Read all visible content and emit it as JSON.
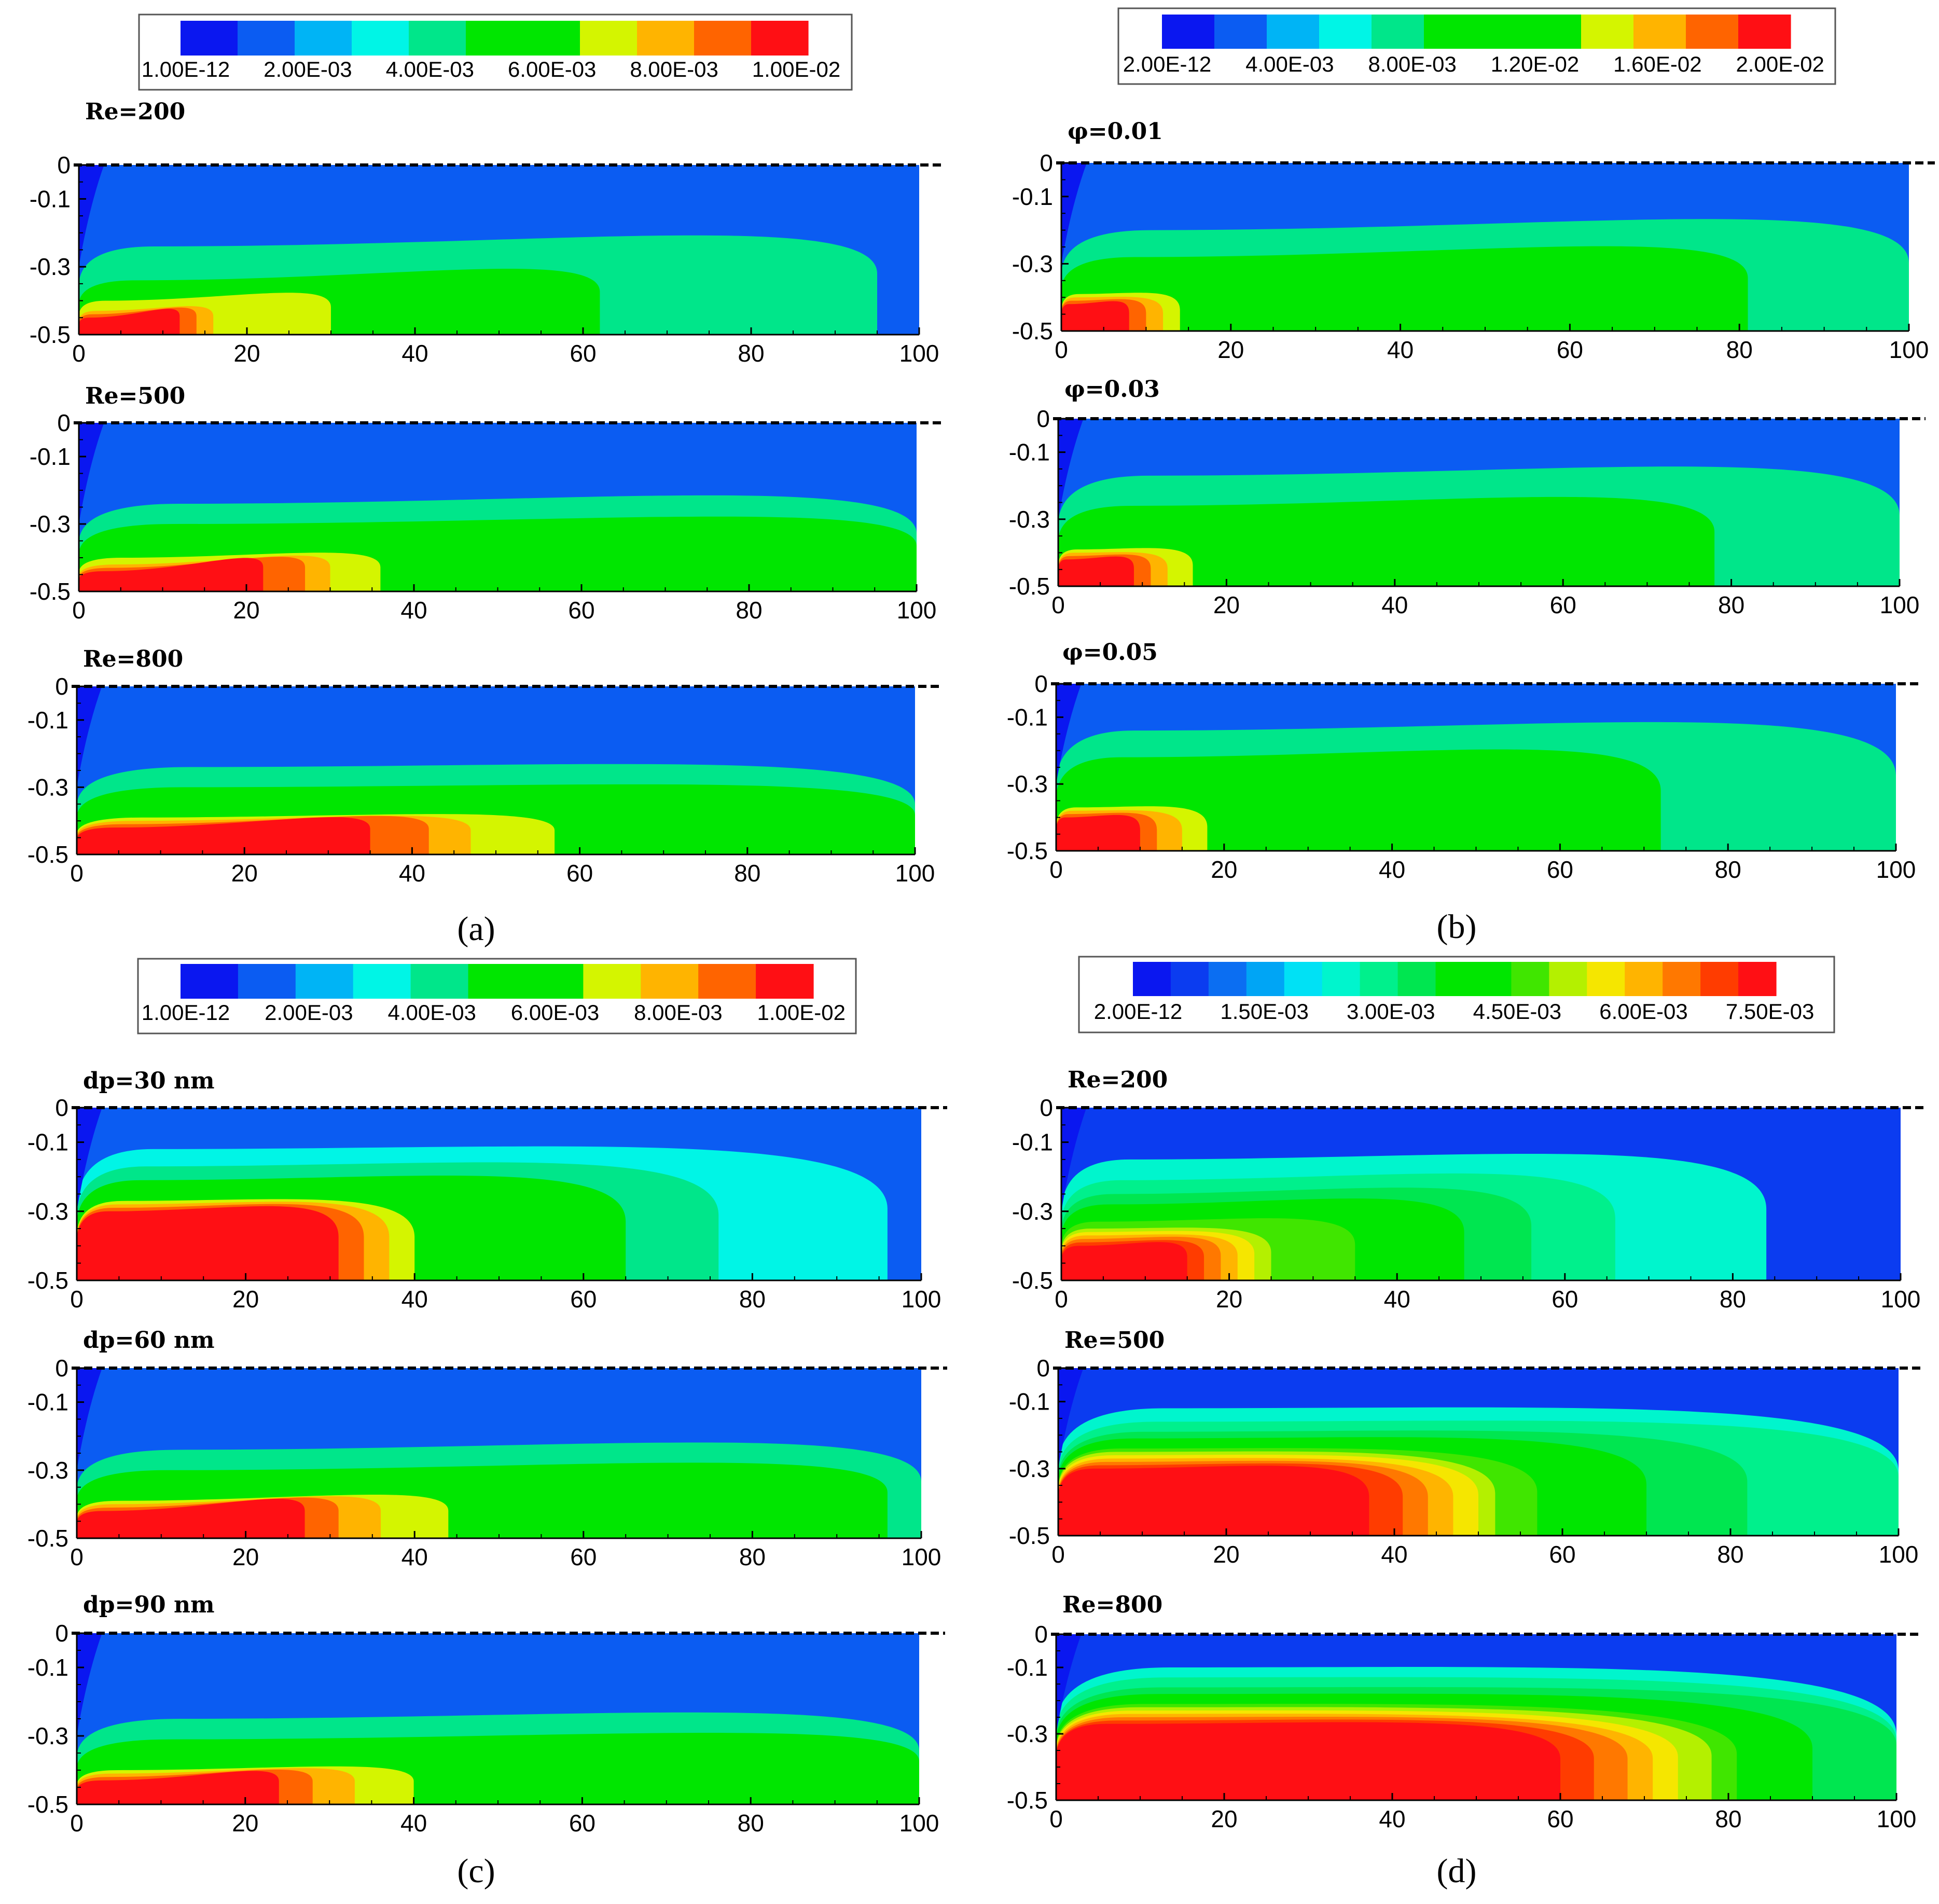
{
  "figure": {
    "panels": [
      {
        "label": "(a)",
        "legend": {
          "ticks": [
            "1.00E-12",
            "2.00E-03",
            "4.00E-03",
            "6.00E-03",
            "8.00E-03",
            "1.00E-02"
          ],
          "colors": [
            "#0a17f0",
            "#0b5cf2",
            "#00b4f5",
            "#00f5e6",
            "#00e68a",
            "#00e600",
            "#00e600",
            "#d4f500",
            "#ffb400",
            "#ff6400",
            "#ff0f14"
          ]
        },
        "subplots": [
          {
            "title": "Re=200",
            "contours": [
              [
                -0.45,
                8,
                -0.38,
                12
              ],
              [
                -0.44,
                11,
                -0.38,
                14
              ],
              [
                -0.43,
                14,
                -0.38,
                16
              ],
              [
                -0.4,
                21,
                -0.32,
                30
              ],
              [
                -0.38,
                32,
                -0.28,
                42
              ],
              [
                -0.34,
                45,
                -0.22,
                62
              ],
              [
                -0.24,
                60,
                -0.1,
                95
              ]
            ]
          },
          {
            "title": "Re=500",
            "contours": [
              [
                -0.44,
                20,
                -0.34,
                22
              ],
              [
                -0.43,
                25,
                -0.34,
                27
              ],
              [
                -0.42,
                30,
                -0.34,
                30
              ],
              [
                -0.4,
                34,
                -0.34,
                36
              ],
              [
                -0.37,
                60,
                -0.3,
                78
              ],
              [
                -0.3,
                75,
                -0.2,
                100
              ],
              [
                -0.24,
                80,
                -0.12,
                100
              ]
            ]
          },
          {
            "title": "Re=800",
            "contours": [
              [
                -0.42,
                30,
                -0.33,
                35
              ],
              [
                -0.41,
                38,
                -0.33,
                42
              ],
              [
                -0.4,
                45,
                -0.34,
                47
              ],
              [
                -0.39,
                52,
                -0.34,
                57
              ],
              [
                -0.35,
                80,
                -0.29,
                100
              ],
              [
                -0.3,
                85,
                -0.24,
                100
              ],
              [
                -0.24,
                90,
                -0.17,
                100
              ]
            ]
          }
        ],
        "xticks": [
          "0",
          "20",
          "40",
          "60",
          "80",
          "100"
        ],
        "yticks": [
          "0",
          "-0.1",
          "-0.3",
          "-0.5"
        ]
      },
      {
        "label": "(b)",
        "legend": {
          "ticks": [
            "2.00E-12",
            "4.00E-03",
            "8.00E-03",
            "1.20E-02",
            "1.60E-02",
            "2.00E-02"
          ],
          "colors": [
            "#0a17f0",
            "#0b5cf2",
            "#00b4f5",
            "#00f5e6",
            "#00e68a",
            "#00e600",
            "#00e600",
            "#00e600",
            "#d4f500",
            "#ffb400",
            "#ff6400",
            "#ff0f14"
          ]
        },
        "subplots": [
          {
            "title": "φ=0.01",
            "contours": [
              [
                -0.42,
                6,
                -0.38,
                8
              ],
              [
                -0.41,
                8,
                -0.38,
                10
              ],
              [
                -0.4,
                11,
                -0.38,
                12
              ],
              [
                -0.39,
                14,
                -0.36,
                14
              ],
              [
                -0.38,
                24,
                -0.3,
                33
              ],
              [
                -0.34,
                36,
                -0.24,
                49
              ],
              [
                -0.28,
                58,
                -0.15,
                81
              ],
              [
                -0.2,
                70,
                -0.05,
                100
              ]
            ]
          },
          {
            "title": "φ=0.03",
            "contours": [
              [
                -0.42,
                6,
                -0.38,
                9
              ],
              [
                -0.41,
                9,
                -0.38,
                11
              ],
              [
                -0.4,
                12,
                -0.38,
                13
              ],
              [
                -0.39,
                15,
                -0.36,
                16
              ],
              [
                -0.37,
                28,
                -0.29,
                37
              ],
              [
                -0.33,
                40,
                -0.23,
                53
              ],
              [
                -0.26,
                58,
                -0.14,
                78
              ],
              [
                -0.17,
                72,
                -0.03,
                100
              ]
            ]
          },
          {
            "title": "φ=0.05",
            "contours": [
              [
                -0.4,
                7,
                -0.36,
                10
              ],
              [
                -0.39,
                10,
                -0.36,
                12
              ],
              [
                -0.38,
                13,
                -0.36,
                15
              ],
              [
                -0.37,
                16,
                -0.34,
                18
              ],
              [
                -0.34,
                30,
                -0.26,
                39
              ],
              [
                -0.3,
                40,
                -0.2,
                52
              ],
              [
                -0.22,
                52,
                -0.1,
                72
              ],
              [
                -0.14,
                62,
                0.0,
                100
              ]
            ]
          }
        ],
        "xticks": [
          "0",
          "20",
          "40",
          "60",
          "80",
          "100"
        ],
        "yticks": [
          "0",
          "-0.1",
          "-0.3",
          "-0.5"
        ]
      },
      {
        "label": "(c)",
        "legend": {
          "ticks": [
            "1.00E-12",
            "2.00E-03",
            "4.00E-03",
            "6.00E-03",
            "8.00E-03",
            "1.00E-02"
          ],
          "colors": [
            "#0a17f0",
            "#0b5cf2",
            "#00b4f5",
            "#00f5e6",
            "#00e68a",
            "#00e600",
            "#00e600",
            "#d4f500",
            "#ffb400",
            "#ff6400",
            "#ff0f14"
          ]
        },
        "subplots": [
          {
            "title": "dp=30 nm",
            "contours": [
              [
                -0.3,
                25,
                -0.22,
                31
              ],
              [
                -0.29,
                28,
                -0.22,
                34
              ],
              [
                -0.28,
                32,
                -0.22,
                37
              ],
              [
                -0.27,
                36,
                -0.22,
                40
              ],
              [
                -0.24,
                45,
                -0.16,
                56
              ],
              [
                -0.21,
                50,
                -0.12,
                65
              ],
              [
                -0.17,
                55,
                -0.08,
                76
              ],
              [
                -0.12,
                60,
                -0.04,
                96
              ]
            ]
          },
          {
            "title": "dp=60 nm",
            "contours": [
              [
                -0.42,
                20,
                -0.32,
                27
              ],
              [
                -0.41,
                25,
                -0.32,
                31
              ],
              [
                -0.4,
                29,
                -0.32,
                36
              ],
              [
                -0.39,
                32,
                -0.32,
                44
              ],
              [
                -0.36,
                62,
                -0.29,
                78
              ],
              [
                -0.3,
                72,
                -0.2,
                96
              ],
              [
                -0.24,
                80,
                -0.13,
                100
              ]
            ]
          },
          {
            "title": "dp=90 nm",
            "contours": [
              [
                -0.43,
                20,
                -0.35,
                24
              ],
              [
                -0.42,
                24,
                -0.35,
                28
              ],
              [
                -0.41,
                28,
                -0.35,
                33
              ],
              [
                -0.4,
                32,
                -0.35,
                40
              ],
              [
                -0.37,
                62,
                -0.31,
                80
              ],
              [
                -0.31,
                75,
                -0.22,
                100
              ],
              [
                -0.25,
                82,
                -0.15,
                100
              ]
            ]
          }
        ],
        "xticks": [
          "0",
          "20",
          "40",
          "60",
          "80",
          "100"
        ],
        "yticks": [
          "0",
          "-0.1",
          "-0.3",
          "-0.5"
        ]
      },
      {
        "label": "(d)",
        "legend": {
          "ticks": [
            "2.00E-12",
            "1.50E-03",
            "3.00E-03",
            "4.50E-03",
            "6.00E-03",
            "7.50E-03"
          ],
          "colors": [
            "#0a17f0",
            "#0b3cf0",
            "#0b6ef2",
            "#00a5f5",
            "#00e1f5",
            "#00f5cd",
            "#00f08c",
            "#00e650",
            "#00e600",
            "#00e600",
            "#40e600",
            "#b4f000",
            "#f5e600",
            "#ffb400",
            "#ff7800",
            "#ff3c00",
            "#ff0f14"
          ]
        },
        "subplots": [
          {
            "title": "Re=200",
            "contours": [
              [
                -0.4,
                14,
                -0.35,
                15
              ],
              [
                -0.39,
                16,
                -0.35,
                17
              ],
              [
                -0.38,
                18,
                -0.34,
                19
              ],
              [
                -0.37,
                20,
                -0.34,
                21
              ],
              [
                -0.36,
                22,
                -0.33,
                23
              ],
              [
                -0.35,
                23,
                -0.32,
                25
              ],
              [
                -0.33,
                28,
                -0.27,
                35
              ],
              [
                -0.31,
                34,
                -0.23,
                43
              ],
              [
                -0.28,
                38,
                -0.19,
                48
              ],
              [
                -0.25,
                42,
                -0.15,
                56
              ],
              [
                -0.21,
                48,
                -0.1,
                66
              ],
              [
                -0.15,
                54,
                -0.04,
                84
              ]
            ]
          },
          {
            "title": "Re=500",
            "contours": [
              [
                -0.3,
                28,
                -0.24,
                37
              ],
              [
                -0.29,
                33,
                -0.24,
                41
              ],
              [
                -0.28,
                38,
                -0.24,
                44
              ],
              [
                -0.27,
                42,
                -0.24,
                47
              ],
              [
                -0.26,
                44,
                -0.23,
                50
              ],
              [
                -0.25,
                46,
                -0.22,
                52
              ],
              [
                -0.24,
                50,
                -0.21,
                57
              ],
              [
                -0.23,
                55,
                -0.19,
                62
              ],
              [
                -0.21,
                60,
                -0.16,
                70
              ],
              [
                -0.19,
                68,
                -0.14,
                82
              ],
              [
                -0.16,
                78,
                -0.11,
                100
              ],
              [
                -0.12,
                84,
                -0.07,
                100
              ]
            ]
          },
          {
            "title": "Re=800",
            "contours": [
              [
                -0.27,
                40,
                -0.22,
                60
              ],
              [
                -0.26,
                48,
                -0.22,
                64
              ],
              [
                -0.25,
                54,
                -0.22,
                68
              ],
              [
                -0.24,
                58,
                -0.22,
                71
              ],
              [
                -0.23,
                62,
                -0.21,
                74
              ],
              [
                -0.22,
                66,
                -0.2,
                78
              ],
              [
                -0.21,
                70,
                -0.19,
                81
              ],
              [
                -0.2,
                75,
                -0.17,
                85
              ],
              [
                -0.18,
                80,
                -0.15,
                90
              ],
              [
                -0.16,
                85,
                -0.13,
                100
              ],
              [
                -0.13,
                88,
                -0.1,
                100
              ],
              [
                -0.1,
                90,
                -0.06,
                100
              ]
            ]
          }
        ],
        "xticks": [
          "0",
          "20",
          "40",
          "60",
          "80",
          "100"
        ],
        "yticks": [
          "0",
          "-0.1",
          "-0.3",
          "-0.5"
        ]
      }
    ]
  },
  "chart_data": [
    {
      "type": "heatmap",
      "title": "(a)",
      "colorbar_ticks": [
        "1.00E-12",
        "2.00E-03",
        "4.00E-03",
        "6.00E-03",
        "8.00E-03",
        "1.00E-02"
      ],
      "colorbar_range": [
        0,
        0.01
      ],
      "subplots": [
        "Re=200",
        "Re=500",
        "Re=800"
      ],
      "xlim": [
        0,
        100
      ],
      "ylim": [
        -0.5,
        0
      ]
    },
    {
      "type": "heatmap",
      "title": "(b)",
      "colorbar_ticks": [
        "2.00E-12",
        "4.00E-03",
        "8.00E-03",
        "1.20E-02",
        "1.60E-02",
        "2.00E-02"
      ],
      "colorbar_range": [
        0,
        0.02
      ],
      "subplots": [
        "φ=0.01",
        "φ=0.03",
        "φ=0.05"
      ],
      "xlim": [
        0,
        100
      ],
      "ylim": [
        -0.5,
        0
      ]
    },
    {
      "type": "heatmap",
      "title": "(c)",
      "colorbar_ticks": [
        "1.00E-12",
        "2.00E-03",
        "4.00E-03",
        "6.00E-03",
        "8.00E-03",
        "1.00E-02"
      ],
      "colorbar_range": [
        0,
        0.01
      ],
      "subplots": [
        "dp=30 nm",
        "dp=60 nm",
        "dp=90 nm"
      ],
      "xlim": [
        0,
        100
      ],
      "ylim": [
        -0.5,
        0
      ]
    },
    {
      "type": "heatmap",
      "title": "(d)",
      "colorbar_ticks": [
        "2.00E-12",
        "1.50E-03",
        "3.00E-03",
        "4.50E-03",
        "6.00E-03",
        "7.50E-03"
      ],
      "colorbar_range": [
        0,
        0.0075
      ],
      "subplots": [
        "Re=200",
        "Re=500",
        "Re=800"
      ],
      "xlim": [
        0,
        100
      ],
      "ylim": [
        -0.5,
        0
      ]
    }
  ]
}
